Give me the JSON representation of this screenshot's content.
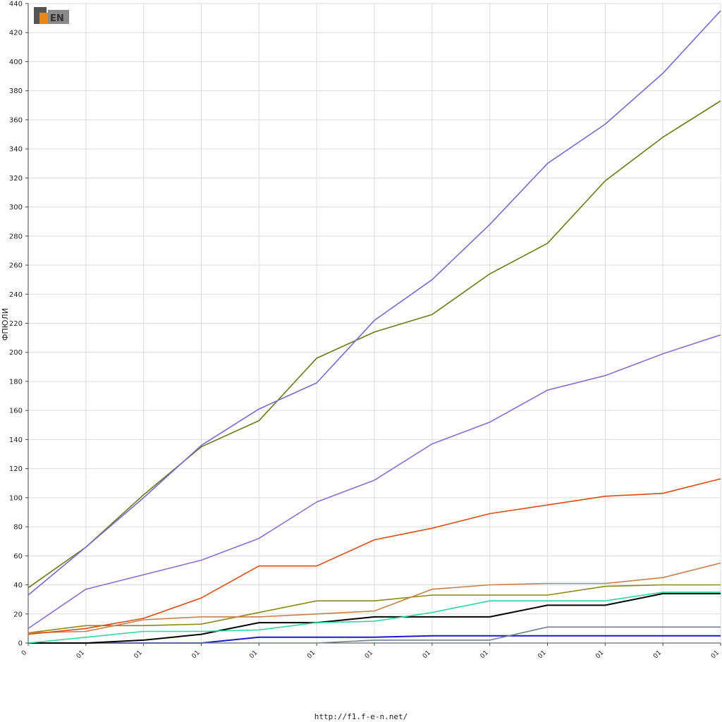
{
  "logo_text": "F1EN",
  "footer": {
    "url": "http://f1.f-e-n.net/"
  },
  "chart_data": {
    "type": "line",
    "title": "",
    "ylabel": "ФПЮЛИ",
    "xlabel": "",
    "ylim": [
      0,
      440
    ],
    "ytick_step": 20,
    "grid": true,
    "legend": "none",
    "x_tick_labels": [
      "0",
      "01",
      "01",
      "01",
      "01",
      "01",
      "01",
      "01",
      "01",
      "01",
      "01",
      "01",
      "01"
    ],
    "series": [
      {
        "color": "#7b68d6",
        "values": [
          33,
          66,
          100,
          136,
          161,
          179,
          222,
          250,
          288,
          330,
          357,
          392,
          435
        ]
      },
      {
        "color": "#6b7a12",
        "values": [
          38,
          66,
          102,
          135,
          153,
          196,
          214,
          226,
          254,
          275,
          318,
          348,
          373
        ]
      },
      {
        "color": "#8a6fd0",
        "values": [
          10,
          37,
          47,
          57,
          72,
          97,
          112,
          137,
          152,
          174,
          184,
          199,
          212
        ]
      },
      {
        "color": "#e04a10",
        "values": [
          6,
          10,
          17,
          31,
          53,
          53,
          71,
          79,
          89,
          95,
          101,
          103,
          113
        ]
      },
      {
        "color": "#c8804a",
        "values": [
          7,
          8,
          16,
          18,
          18,
          20,
          22,
          37,
          40,
          41,
          41,
          45,
          55
        ]
      },
      {
        "color": "#8a8a10",
        "values": [
          7,
          12,
          12,
          13,
          21,
          29,
          29,
          33,
          33,
          33,
          39,
          40,
          40
        ]
      },
      {
        "color": "#2ed89a",
        "values": [
          0,
          4,
          8,
          8,
          9,
          14,
          15,
          21,
          29,
          29,
          29,
          35,
          35
        ]
      },
      {
        "color": "#000000",
        "values": [
          0,
          0,
          2,
          6,
          14,
          14,
          18,
          18,
          18,
          26,
          26,
          34,
          34
        ]
      },
      {
        "color": "#708090",
        "values": [
          0,
          0,
          0,
          0,
          0,
          0,
          2,
          2,
          2,
          11,
          11,
          11,
          11
        ]
      },
      {
        "color": "#1a1acc",
        "values": [
          0,
          0,
          0,
          0,
          4,
          4,
          4,
          5,
          5,
          5,
          5,
          5,
          5
        ]
      }
    ]
  }
}
